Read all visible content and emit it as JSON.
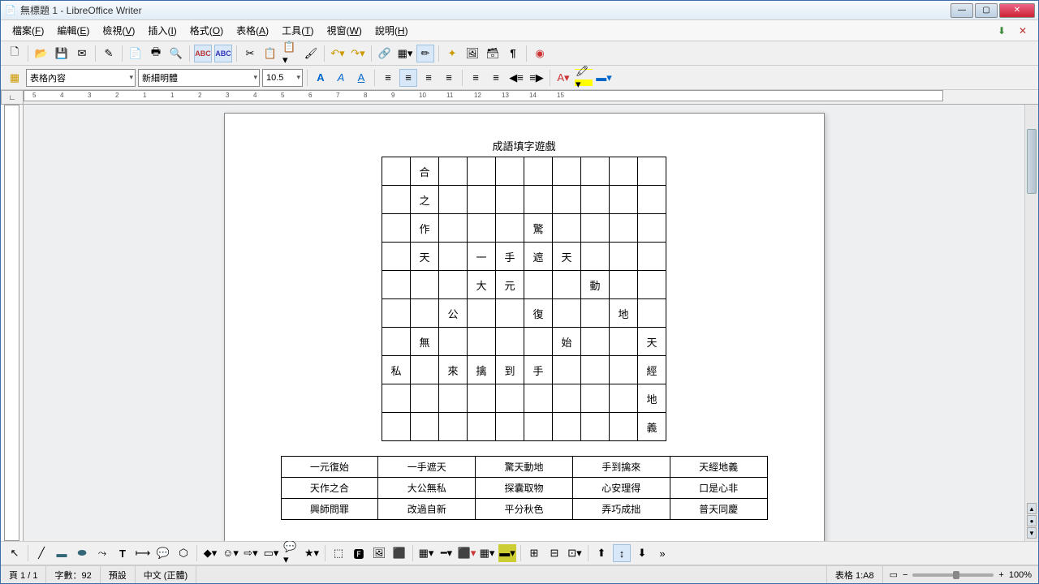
{
  "window": {
    "title": "無標題 1 - LibreOffice Writer",
    "app_icon": "📄"
  },
  "menu": {
    "items": [
      {
        "label": "檔案",
        "key": "F"
      },
      {
        "label": "編輯",
        "key": "E"
      },
      {
        "label": "檢視",
        "key": "V"
      },
      {
        "label": "插入",
        "key": "I"
      },
      {
        "label": "格式",
        "key": "O"
      },
      {
        "label": "表格",
        "key": "A"
      },
      {
        "label": "工具",
        "key": "T"
      },
      {
        "label": "視窗",
        "key": "W"
      },
      {
        "label": "說明",
        "key": "H"
      }
    ]
  },
  "format": {
    "style": "表格內容",
    "font": "新細明體",
    "size": "10.5"
  },
  "ruler": {
    "corner": "∟",
    "ticks": [
      -5,
      -4,
      -3,
      -2,
      -1,
      1,
      2,
      3,
      4,
      5,
      6,
      7,
      8,
      9,
      10,
      11,
      12,
      13,
      14,
      15
    ]
  },
  "doc": {
    "title": "成語填字遊戲",
    "grid_size": {
      "rows": 10,
      "cols": 10
    },
    "grid": [
      [
        "",
        "合",
        "",
        "",
        "",
        "",
        "",
        "",
        "",
        ""
      ],
      [
        "",
        "之",
        "",
        "",
        "",
        "",
        "",
        "",
        "",
        ""
      ],
      [
        "",
        "作",
        "",
        "",
        "",
        "驚",
        "",
        "",
        "",
        ""
      ],
      [
        "",
        "天",
        "",
        "一",
        "手",
        "遮",
        "天",
        "",
        "",
        ""
      ],
      [
        "",
        "",
        "",
        "大",
        "元",
        "",
        "",
        "動",
        "",
        ""
      ],
      [
        "",
        "",
        "公",
        "",
        "",
        "復",
        "",
        "",
        "地",
        ""
      ],
      [
        "",
        "無",
        "",
        "",
        "",
        "",
        "始",
        "",
        "",
        "天"
      ],
      [
        "私",
        "",
        "來",
        "擒",
        "到",
        "手",
        "",
        "",
        "",
        "經"
      ],
      [
        "",
        "",
        "",
        "",
        "",
        "",
        "",
        "",
        "",
        "地"
      ],
      [
        "",
        "",
        "",
        "",
        "",
        "",
        "",
        "",
        "",
        "義"
      ]
    ],
    "caret_cell": {
      "row": 3,
      "col": 3
    },
    "words": [
      [
        "一元復始",
        "一手遮天",
        "驚天動地",
        "手到擒來",
        "天經地義"
      ],
      [
        "天作之合",
        "大公無私",
        "探囊取物",
        "心安理得",
        "口是心非"
      ],
      [
        "興師問罪",
        "改過自新",
        "平分秋色",
        "弄巧成拙",
        "普天同慶"
      ]
    ]
  },
  "status": {
    "page": "頁 1 / 1",
    "words": "字數：92",
    "style": "預設",
    "lang": "中文 (正體)",
    "cell": "表格 1:A8",
    "zoom": "100%"
  },
  "colors": {
    "titlebar_g1": "#f8fbfe",
    "titlebar_g2": "#e1ecf6",
    "close_bg": "#c23b3b",
    "page_bg": "#ffffff",
    "border": "#000000"
  }
}
